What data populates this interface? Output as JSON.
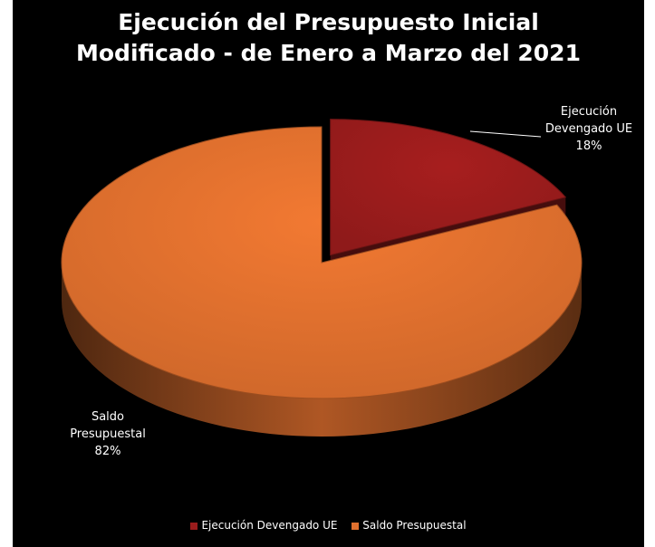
{
  "chart_data": {
    "type": "pie",
    "title_lines": [
      "Ejecución del Presupuesto Inicial",
      "Modificado - de Enero a Marzo del 2021"
    ],
    "slices": [
      {
        "name": "Ejecución Devengado UE",
        "value": 18,
        "label": "18%",
        "label_lines": [
          "Ejecución",
          "Devengado UE",
          "18%"
        ],
        "color": "#9b1c1c",
        "exploded": true
      },
      {
        "name": "Saldo Presupuestal",
        "value": 82,
        "label": "82%",
        "label_lines": [
          "Saldo",
          "Presupuestal",
          "82%"
        ],
        "color": "#e0702e",
        "exploded": false
      }
    ],
    "legend": {
      "position": "bottom"
    },
    "style": "3d"
  }
}
